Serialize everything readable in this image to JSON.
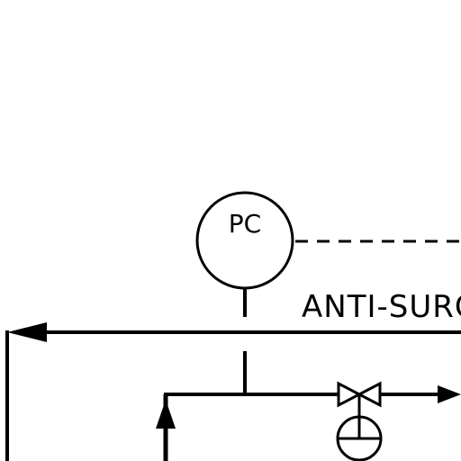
{
  "diagram": {
    "instrument": {
      "tag": "PC"
    },
    "line_label": "ANTI-SURGE",
    "colors": {
      "stroke": "#000000",
      "background": "#ffffff"
    }
  }
}
